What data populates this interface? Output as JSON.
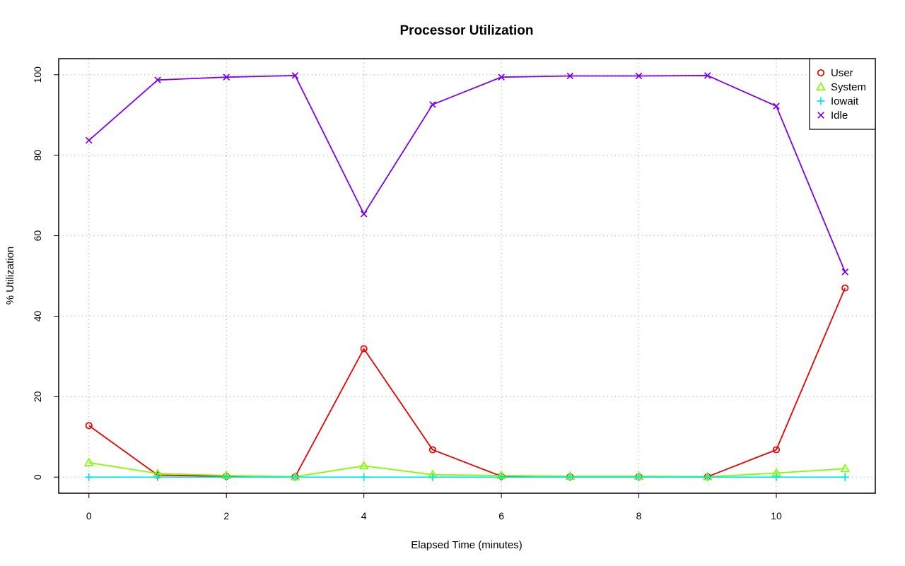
{
  "chart_data": {
    "type": "line",
    "title": "Processor Utilization",
    "xlabel": "Elapsed Time (minutes)",
    "ylabel": "% Utilization",
    "xlim": [
      -0.44,
      11.44
    ],
    "ylim": [
      -4,
      104
    ],
    "x_ticks": [
      0,
      2,
      4,
      6,
      8,
      10
    ],
    "y_ticks": [
      0,
      20,
      40,
      60,
      80,
      100
    ],
    "x_tick_labels": [
      "0",
      "2",
      "4",
      "6",
      "8",
      "10"
    ],
    "y_tick_labels": [
      "0",
      "20",
      "40",
      "60",
      "80",
      "100"
    ],
    "grid": true,
    "legend_position": "top-right",
    "x": [
      0,
      1,
      2,
      3,
      4,
      5,
      6,
      7,
      8,
      9,
      10,
      11
    ],
    "series": [
      {
        "name": "User",
        "color": "#ee0000",
        "marker": "circle",
        "values": [
          12.8,
          0.5,
          0.2,
          0.1,
          31.9,
          6.8,
          0.2,
          0.1,
          0.1,
          0.1,
          6.8,
          47.0
        ]
      },
      {
        "name": "System",
        "color": "#7fff00",
        "marker": "triangle",
        "values": [
          3.6,
          0.9,
          0.4,
          0.1,
          2.8,
          0.6,
          0.4,
          0.2,
          0.2,
          0.1,
          1.0,
          2.1
        ]
      },
      {
        "name": "Iowait",
        "color": "#00e5ee",
        "marker": "plus",
        "values": [
          0.0,
          0.0,
          0.0,
          0.0,
          0.0,
          0.0,
          0.0,
          0.0,
          0.0,
          0.0,
          0.0,
          0.0
        ]
      },
      {
        "name": "Idle",
        "color": "#8000ee",
        "marker": "cross",
        "values": [
          83.7,
          98.7,
          99.4,
          99.8,
          65.4,
          92.6,
          99.4,
          99.7,
          99.7,
          99.8,
          92.2,
          51.0
        ]
      }
    ]
  }
}
